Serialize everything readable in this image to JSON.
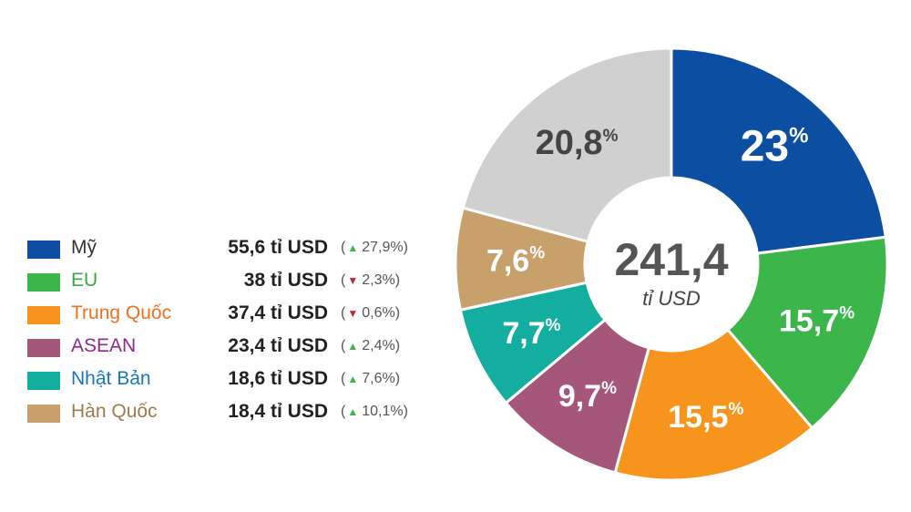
{
  "chart_data": {
    "type": "pie",
    "center": {
      "value": "241,4",
      "unit": "tỉ USD"
    },
    "slices": [
      {
        "name": "Mỹ",
        "value_text": "55,6 tỉ USD",
        "change_dir": "up",
        "change": "27,9%",
        "share": 23,
        "label": "23",
        "color": "#0b4ea2",
        "name_color": "#333333"
      },
      {
        "name": "EU",
        "value_text": "38 tỉ USD",
        "change_dir": "down",
        "change": "2,3%",
        "share": 15.7,
        "label": "15,7",
        "color": "#3cb54a",
        "name_color": "#3aa845"
      },
      {
        "name": "Trung Quốc",
        "value_text": "37,4 tỉ USD",
        "change_dir": "down",
        "change": "0,6%",
        "share": 15.5,
        "label": "15,5",
        "color": "#f7941d",
        "name_color": "#f26f21"
      },
      {
        "name": "ASEAN",
        "value_text": "23,4 tỉ USD",
        "change_dir": "up",
        "change": "2,4%",
        "share": 9.7,
        "label": "9,7",
        "color": "#a45778",
        "name_color": "#8e2a8e"
      },
      {
        "name": "Nhật Bản",
        "value_text": "18,6 tỉ USD",
        "change_dir": "up",
        "change": "7,6%",
        "share": 7.7,
        "label": "7,7",
        "color": "#14aea0",
        "name_color": "#1a75bb"
      },
      {
        "name": "Hàn Quốc",
        "value_text": "18,4 tỉ USD",
        "change_dir": "up",
        "change": "10,1%",
        "share": 7.6,
        "label": "7,6",
        "color": "#c8a06c",
        "name_color": "#9e7b4f"
      },
      {
        "name": "",
        "share": 20.8,
        "label": "20,8",
        "color": "#d0d0d0"
      }
    ],
    "percent_sign": "%",
    "arrow_colors": {
      "up": "#3cb54a",
      "down": "#c0262d"
    }
  }
}
